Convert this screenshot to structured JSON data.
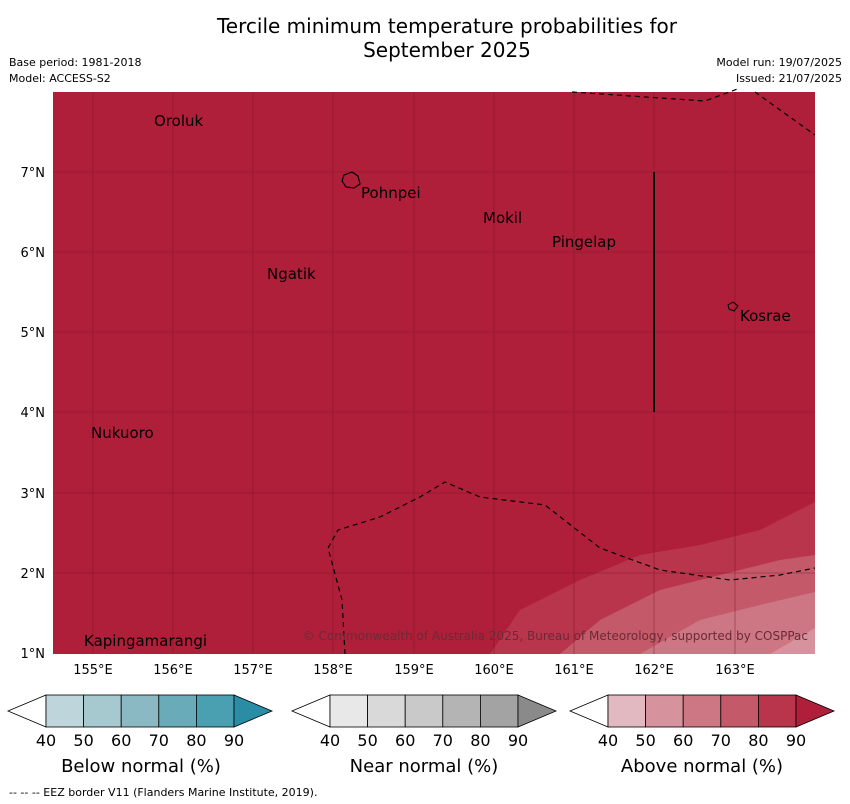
{
  "header": {
    "title_line1": "Tercile minimum temperature probabilities for",
    "title_line2": "September 2025",
    "base_period": "Base period: 1981-2018",
    "model": "Model: ACCESS-S2",
    "model_run": "Model run: 19/07/2025",
    "issued": "Issued: 21/07/2025"
  },
  "map": {
    "fill_color": "#b01f3a",
    "lat_labels": [
      "7°N",
      "6°N",
      "5°N",
      "4°N",
      "3°N",
      "2°N",
      "1°N"
    ],
    "lon_labels": [
      "155°E",
      "156°E",
      "157°E",
      "158°E",
      "159°E",
      "160°E",
      "161°E",
      "162°E",
      "163°E"
    ],
    "islands": [
      "Oroluk",
      "Pohnpei",
      "Mokil",
      "Pingelap",
      "Ngatik",
      "Kosrae",
      "Nukuoro",
      "Kapingamarangi"
    ],
    "copyright": "© Commonwealth of Australia 2025, Bureau of Meteorology, supported by COSPPac"
  },
  "legend": {
    "ticks": [
      "40",
      "50",
      "60",
      "70",
      "80",
      "90"
    ],
    "below": {
      "title": "Below normal (%)",
      "colors": [
        "#ffffff",
        "#bfd5dc",
        "#a6c8cf",
        "#8bb9c3",
        "#6aabba",
        "#4a9fb0",
        "#2a8da6"
      ]
    },
    "near": {
      "title": "Near normal (%)",
      "colors": [
        "#ffffff",
        "#e8e8e8",
        "#d9d9d9",
        "#c9c9c9",
        "#b4b4b4",
        "#a3a3a3",
        "#8a8a8a"
      ]
    },
    "above": {
      "title": "Above normal (%)",
      "colors": [
        "#ffffff",
        "#e2b9c0",
        "#d6939d",
        "#cc7783",
        "#c45a69",
        "#b8354c",
        "#b01f3a"
      ]
    }
  },
  "footnote": "--  --  -- EEZ border V11 (Flanders Marine Institute, 2019)."
}
